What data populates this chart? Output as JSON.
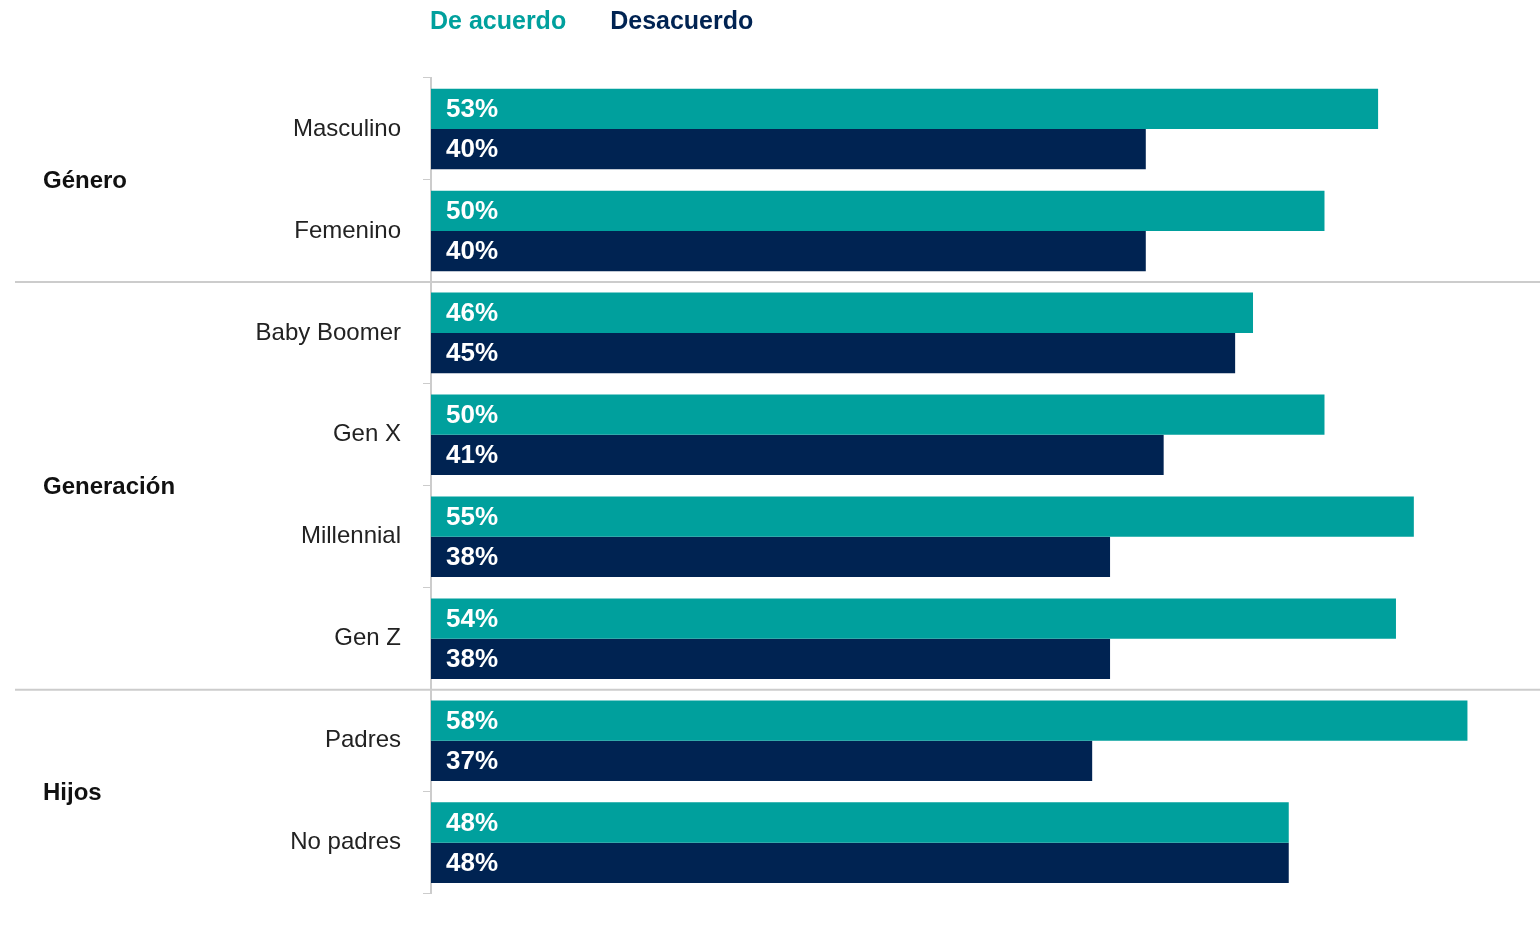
{
  "chart_data": {
    "type": "bar",
    "orientation": "horizontal",
    "categories": [
      "Masculino",
      "Femenino",
      "Baby Boomer",
      "Gen X",
      "Millennial",
      "Gen Z",
      "Padres",
      "No padres"
    ],
    "series": [
      {
        "name": "De acuerdo",
        "color": "#00a09d",
        "values": [
          53,
          50,
          46,
          50,
          55,
          54,
          58,
          48
        ],
        "value_labels": [
          "53%",
          "50%",
          "46%",
          "50%",
          "55%",
          "54%",
          "58%",
          "48%"
        ]
      },
      {
        "name": "Desacuerdo",
        "color": "#002352",
        "values": [
          40,
          40,
          45,
          41,
          38,
          38,
          37,
          48
        ],
        "value_labels": [
          "40%",
          "40%",
          "45%",
          "41%",
          "38%",
          "38%",
          "37%",
          "48%"
        ]
      }
    ],
    "legend": "top",
    "tick_labels": "y",
    "annotations": [
      "Género",
      "Generación",
      "Hijos"
    ]
  }
}
